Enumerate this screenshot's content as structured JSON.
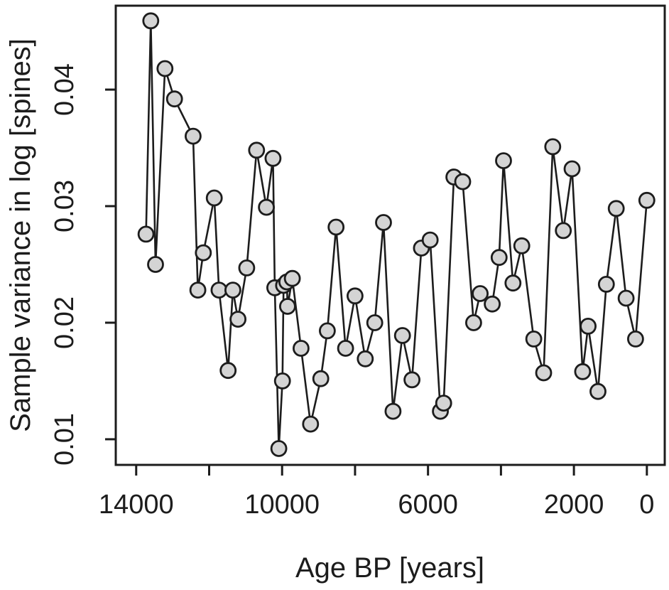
{
  "chart_data": {
    "type": "line",
    "title": "",
    "xlabel": "Age BP [years]",
    "ylabel": "Sample variance in log [spines]",
    "x": [
      13730,
      13600,
      13470,
      13210,
      12950,
      12440,
      12310,
      12160,
      11860,
      11730,
      11480,
      11350,
      11210,
      10970,
      10700,
      10430,
      10250,
      10200,
      10090,
      9990,
      9960,
      9870,
      9850,
      9720,
      9480,
      9220,
      8940,
      8760,
      8520,
      8260,
      8000,
      7720,
      7460,
      7220,
      6960,
      6700,
      6440,
      6180,
      5940,
      5660,
      5570,
      5290,
      5050,
      4750,
      4570,
      4240,
      4050,
      3930,
      3670,
      3430,
      3100,
      2830,
      2580,
      2290,
      2050,
      1760,
      1610,
      1340,
      1110,
      840,
      570,
      310,
      0
    ],
    "y": [
      0.0276,
      0.0459,
      0.025,
      0.0418,
      0.0392,
      0.036,
      0.0228,
      0.026,
      0.0307,
      0.0228,
      0.0159,
      0.0228,
      0.0203,
      0.0247,
      0.0348,
      0.0299,
      0.0341,
      0.023,
      0.0092,
      0.015,
      0.0232,
      0.0235,
      0.0214,
      0.0238,
      0.0178,
      0.0113,
      0.0152,
      0.0193,
      0.0282,
      0.0178,
      0.0223,
      0.0169,
      0.02,
      0.0286,
      0.0124,
      0.0189,
      0.0151,
      0.0264,
      0.0271,
      0.0124,
      0.0131,
      0.0325,
      0.0321,
      0.02,
      0.0225,
      0.0216,
      0.0256,
      0.0339,
      0.0234,
      0.0266,
      0.0186,
      0.0157,
      0.0351,
      0.0279,
      0.0332,
      0.0158,
      0.0197,
      0.0141,
      0.0233,
      0.0298,
      0.0221,
      0.0186,
      0.0305
    ],
    "x_axis_reversed": true,
    "xlim": [
      14560,
      -490
    ],
    "ylim": [
      0.0078,
      0.0472
    ],
    "x_ticks": [
      {
        "value": 14000,
        "label": "14000"
      },
      {
        "value": 12000,
        "label": ""
      },
      {
        "value": 10000,
        "label": "10000"
      },
      {
        "value": 8000,
        "label": ""
      },
      {
        "value": 6000,
        "label": "6000"
      },
      {
        "value": 4000,
        "label": ""
      },
      {
        "value": 2000,
        "label": "2000"
      },
      {
        "value": 0,
        "label": "0"
      }
    ],
    "y_ticks": [
      {
        "value": 0.01,
        "label": "0.01"
      },
      {
        "value": 0.02,
        "label": "0.02"
      },
      {
        "value": 0.03,
        "label": "0.03"
      },
      {
        "value": 0.04,
        "label": "0.04"
      }
    ],
    "grid": false,
    "legend": "none",
    "marker": "circle",
    "colors": {
      "line": "#1c1c1c",
      "marker_fill": "#d4d4d4",
      "marker_stroke": "#1c1c1c",
      "axis": "#1c1c1c",
      "background": "#ffffff"
    }
  }
}
